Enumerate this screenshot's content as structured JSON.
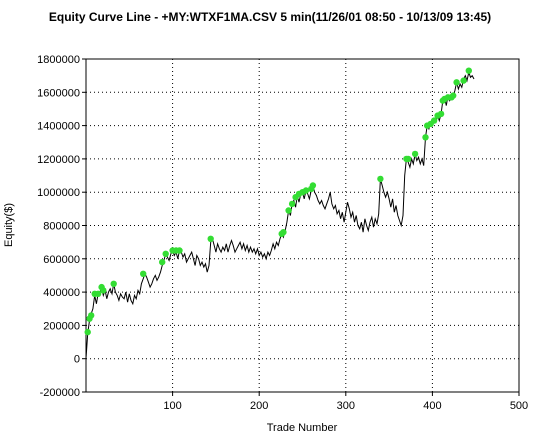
{
  "chart_data": {
    "type": "line",
    "title": "Equity Curve Line - +MY:WTXF1MA.CSV 5 min(11/26/01 08:50 - 10/13/09 13:45)",
    "xlabel": "Trade Number",
    "ylabel": "Equity($)",
    "xlim": [
      0,
      500
    ],
    "ylim": [
      -200000,
      1800000
    ],
    "x_ticks": [
      "100",
      "200",
      "300",
      "400",
      "500"
    ],
    "y_ticks": [
      "1800000",
      "1600000",
      "1400000",
      "1200000",
      "1000000",
      "800000",
      "600000",
      "400000",
      "200000",
      "0",
      "-200000"
    ],
    "grid": "dotted",
    "line_color": "#000000",
    "marker_color": "#33dd33",
    "series": [
      {
        "values": [
          [
            0,
            0
          ],
          [
            2,
            150000
          ],
          [
            4,
            230000
          ],
          [
            6,
            270000
          ],
          [
            8,
            300000
          ],
          [
            10,
            380000
          ],
          [
            12,
            330000
          ],
          [
            14,
            390000
          ],
          [
            16,
            400000
          ],
          [
            18,
            430000
          ],
          [
            20,
            380000
          ],
          [
            22,
            410000
          ],
          [
            24,
            360000
          ],
          [
            26,
            400000
          ],
          [
            28,
            420000
          ],
          [
            30,
            390000
          ],
          [
            32,
            450000
          ],
          [
            34,
            400000
          ],
          [
            36,
            380000
          ],
          [
            38,
            350000
          ],
          [
            40,
            390000
          ],
          [
            42,
            370000
          ],
          [
            44,
            360000
          ],
          [
            46,
            400000
          ],
          [
            48,
            340000
          ],
          [
            50,
            390000
          ],
          [
            52,
            350000
          ],
          [
            54,
            330000
          ],
          [
            56,
            380000
          ],
          [
            58,
            360000
          ],
          [
            60,
            410000
          ],
          [
            62,
            390000
          ],
          [
            64,
            450000
          ],
          [
            66,
            480000
          ],
          [
            68,
            510000
          ],
          [
            70,
            490000
          ],
          [
            72,
            460000
          ],
          [
            74,
            430000
          ],
          [
            76,
            450000
          ],
          [
            78,
            480000
          ],
          [
            80,
            500000
          ],
          [
            82,
            470000
          ],
          [
            84,
            490000
          ],
          [
            86,
            520000
          ],
          [
            88,
            560000
          ],
          [
            90,
            590000
          ],
          [
            92,
            630000
          ],
          [
            94,
            610000
          ],
          [
            96,
            590000
          ],
          [
            98,
            630000
          ],
          [
            100,
            650000
          ],
          [
            102,
            620000
          ],
          [
            104,
            640000
          ],
          [
            106,
            600000
          ],
          [
            108,
            650000
          ],
          [
            110,
            640000
          ],
          [
            112,
            610000
          ],
          [
            114,
            630000
          ],
          [
            116,
            580000
          ],
          [
            118,
            600000
          ],
          [
            120,
            620000
          ],
          [
            122,
            640000
          ],
          [
            124,
            600000
          ],
          [
            126,
            560000
          ],
          [
            128,
            620000
          ],
          [
            130,
            600000
          ],
          [
            132,
            560000
          ],
          [
            134,
            580000
          ],
          [
            136,
            550000
          ],
          [
            138,
            570000
          ],
          [
            140,
            520000
          ],
          [
            142,
            560000
          ],
          [
            144,
            700000
          ],
          [
            146,
            720000
          ],
          [
            148,
            680000
          ],
          [
            150,
            640000
          ],
          [
            152,
            690000
          ],
          [
            154,
            660000
          ],
          [
            156,
            640000
          ],
          [
            158,
            670000
          ],
          [
            160,
            650000
          ],
          [
            162,
            690000
          ],
          [
            164,
            640000
          ],
          [
            166,
            680000
          ],
          [
            168,
            710000
          ],
          [
            170,
            680000
          ],
          [
            172,
            640000
          ],
          [
            174,
            660000
          ],
          [
            176,
            680000
          ],
          [
            178,
            700000
          ],
          [
            180,
            660000
          ],
          [
            182,
            690000
          ],
          [
            184,
            650000
          ],
          [
            186,
            680000
          ],
          [
            188,
            640000
          ],
          [
            190,
            670000
          ],
          [
            192,
            640000
          ],
          [
            194,
            660000
          ],
          [
            196,
            630000
          ],
          [
            198,
            660000
          ],
          [
            200,
            620000
          ],
          [
            202,
            640000
          ],
          [
            204,
            610000
          ],
          [
            206,
            630000
          ],
          [
            208,
            600000
          ],
          [
            210,
            640000
          ],
          [
            212,
            620000
          ],
          [
            214,
            650000
          ],
          [
            216,
            690000
          ],
          [
            218,
            660000
          ],
          [
            220,
            700000
          ],
          [
            222,
            680000
          ],
          [
            224,
            720000
          ],
          [
            226,
            750000
          ],
          [
            228,
            730000
          ],
          [
            230,
            770000
          ],
          [
            232,
            820000
          ],
          [
            234,
            890000
          ],
          [
            236,
            860000
          ],
          [
            238,
            930000
          ],
          [
            240,
            950000
          ],
          [
            242,
            910000
          ],
          [
            244,
            980000
          ],
          [
            246,
            940000
          ],
          [
            248,
            990000
          ],
          [
            250,
            1000000
          ],
          [
            252,
            960000
          ],
          [
            254,
            1010000
          ],
          [
            256,
            990000
          ],
          [
            258,
            960000
          ],
          [
            260,
            1010000
          ],
          [
            262,
            1040000
          ],
          [
            264,
            1000000
          ],
          [
            266,
            980000
          ],
          [
            268,
            950000
          ],
          [
            270,
            930000
          ],
          [
            272,
            950000
          ],
          [
            274,
            920000
          ],
          [
            276,
            900000
          ],
          [
            278,
            930000
          ],
          [
            280,
            960000
          ],
          [
            282,
            1000000
          ],
          [
            284,
            930000
          ],
          [
            286,
            900000
          ],
          [
            288,
            920000
          ],
          [
            290,
            870000
          ],
          [
            292,
            890000
          ],
          [
            294,
            840000
          ],
          [
            296,
            880000
          ],
          [
            298,
            820000
          ],
          [
            300,
            880000
          ],
          [
            302,
            940000
          ],
          [
            304,
            900000
          ],
          [
            306,
            850000
          ],
          [
            308,
            880000
          ],
          [
            310,
            820000
          ],
          [
            312,
            860000
          ],
          [
            314,
            800000
          ],
          [
            316,
            780000
          ],
          [
            318,
            820000
          ],
          [
            320,
            760000
          ],
          [
            322,
            840000
          ],
          [
            324,
            800000
          ],
          [
            326,
            770000
          ],
          [
            328,
            820000
          ],
          [
            330,
            850000
          ],
          [
            332,
            790000
          ],
          [
            334,
            840000
          ],
          [
            336,
            810000
          ],
          [
            338,
            870000
          ],
          [
            340,
            1080000
          ],
          [
            342,
            1040000
          ],
          [
            344,
            1000000
          ],
          [
            346,
            970000
          ],
          [
            348,
            1000000
          ],
          [
            350,
            960000
          ],
          [
            352,
            910000
          ],
          [
            354,
            960000
          ],
          [
            356,
            880000
          ],
          [
            358,
            920000
          ],
          [
            360,
            860000
          ],
          [
            362,
            830000
          ],
          [
            364,
            800000
          ],
          [
            366,
            860000
          ],
          [
            368,
            1100000
          ],
          [
            370,
            1200000
          ],
          [
            372,
            1180000
          ],
          [
            374,
            1150000
          ],
          [
            376,
            1200000
          ],
          [
            378,
            1170000
          ],
          [
            380,
            1230000
          ],
          [
            382,
            1190000
          ],
          [
            384,
            1210000
          ],
          [
            386,
            1170000
          ],
          [
            388,
            1200000
          ],
          [
            390,
            1160000
          ],
          [
            392,
            1330000
          ],
          [
            394,
            1400000
          ],
          [
            396,
            1380000
          ],
          [
            398,
            1420000
          ],
          [
            400,
            1400000
          ],
          [
            402,
            1440000
          ],
          [
            404,
            1420000
          ],
          [
            406,
            1460000
          ],
          [
            408,
            1430000
          ],
          [
            410,
            1470000
          ],
          [
            412,
            1550000
          ],
          [
            414,
            1570000
          ],
          [
            416,
            1520000
          ],
          [
            418,
            1580000
          ],
          [
            420,
            1550000
          ],
          [
            422,
            1570000
          ],
          [
            424,
            1580000
          ],
          [
            426,
            1610000
          ],
          [
            428,
            1660000
          ],
          [
            430,
            1620000
          ],
          [
            432,
            1650000
          ],
          [
            434,
            1630000
          ],
          [
            436,
            1680000
          ],
          [
            438,
            1700000
          ],
          [
            440,
            1670000
          ],
          [
            442,
            1720000
          ],
          [
            444,
            1690000
          ],
          [
            446,
            1700000
          ],
          [
            448,
            1680000
          ]
        ],
        "markers": [
          [
            2,
            160000
          ],
          [
            4,
            240000
          ],
          [
            6,
            260000
          ],
          [
            10,
            390000
          ],
          [
            14,
            390000
          ],
          [
            18,
            430000
          ],
          [
            20,
            410000
          ],
          [
            32,
            450000
          ],
          [
            66,
            510000
          ],
          [
            88,
            580000
          ],
          [
            92,
            630000
          ],
          [
            100,
            650000
          ],
          [
            104,
            650000
          ],
          [
            108,
            650000
          ],
          [
            144,
            720000
          ],
          [
            226,
            750000
          ],
          [
            228,
            760000
          ],
          [
            234,
            890000
          ],
          [
            238,
            930000
          ],
          [
            242,
            970000
          ],
          [
            246,
            990000
          ],
          [
            250,
            1000000
          ],
          [
            254,
            1010000
          ],
          [
            260,
            1020000
          ],
          [
            262,
            1040000
          ],
          [
            340,
            1080000
          ],
          [
            370,
            1200000
          ],
          [
            372,
            1200000
          ],
          [
            380,
            1230000
          ],
          [
            392,
            1330000
          ],
          [
            394,
            1400000
          ],
          [
            398,
            1410000
          ],
          [
            402,
            1430000
          ],
          [
            406,
            1460000
          ],
          [
            410,
            1470000
          ],
          [
            412,
            1550000
          ],
          [
            414,
            1560000
          ],
          [
            418,
            1570000
          ],
          [
            422,
            1570000
          ],
          [
            424,
            1580000
          ],
          [
            428,
            1660000
          ],
          [
            436,
            1670000
          ],
          [
            442,
            1730000
          ]
        ]
      }
    ]
  }
}
